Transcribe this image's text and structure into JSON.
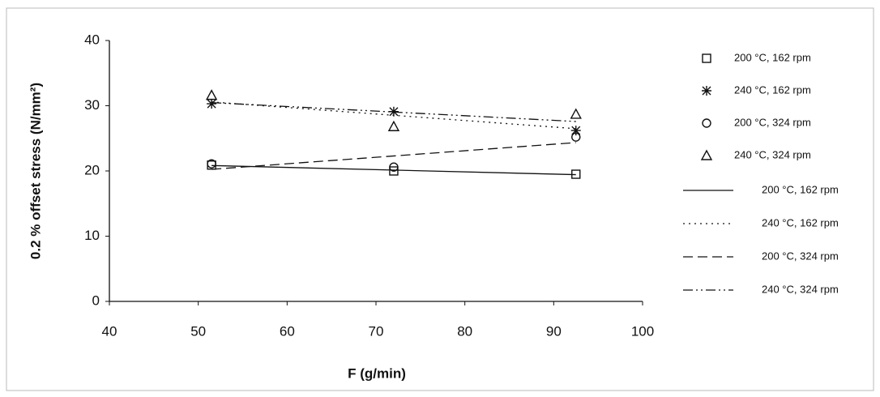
{
  "chart_data": {
    "type": "scatter",
    "x_label": "F (g/min)",
    "y_label": "0.2 % offset stress (N/mm²)",
    "xlim": [
      40,
      100
    ],
    "xticks": [
      40,
      50,
      60,
      70,
      80,
      90,
      100
    ],
    "ylim": [
      0,
      40
    ],
    "yticks": [
      0,
      10,
      20,
      30,
      40
    ],
    "series": [
      {
        "name": "200 °C, 162 rpm",
        "trend_name": "200 °C, 162 rpm",
        "color": "#111111",
        "marker": "square",
        "trend_dash": "none",
        "x": [
          51.5,
          72,
          92.5
        ],
        "values": [
          20.9,
          20.0,
          19.5
        ]
      },
      {
        "name": "240 °C, 162 rpm",
        "trend_name": "240 °C, 162 rpm",
        "color": "#111111",
        "marker": "star",
        "trend_dash": "2 5",
        "x": [
          51.5,
          72,
          92.5
        ],
        "values": [
          30.3,
          29.1,
          26.2
        ]
      },
      {
        "name": "200 °C, 324 rpm",
        "trend_name": "200 °C, 324 rpm",
        "color": "#111111",
        "marker": "circle",
        "trend_dash": "12 6",
        "x": [
          51.5,
          72,
          92.5
        ],
        "values": [
          21.1,
          20.6,
          25.2
        ]
      },
      {
        "name": "240 °C, 324 rpm",
        "trend_name": "240 °C, 324 rpm",
        "color": "#111111",
        "marker": "triangle",
        "trend_dash": "12 4 2 4 2 4",
        "x": [
          51.5,
          72,
          92.5
        ],
        "values": [
          31.6,
          26.8,
          28.7
        ]
      }
    ]
  }
}
